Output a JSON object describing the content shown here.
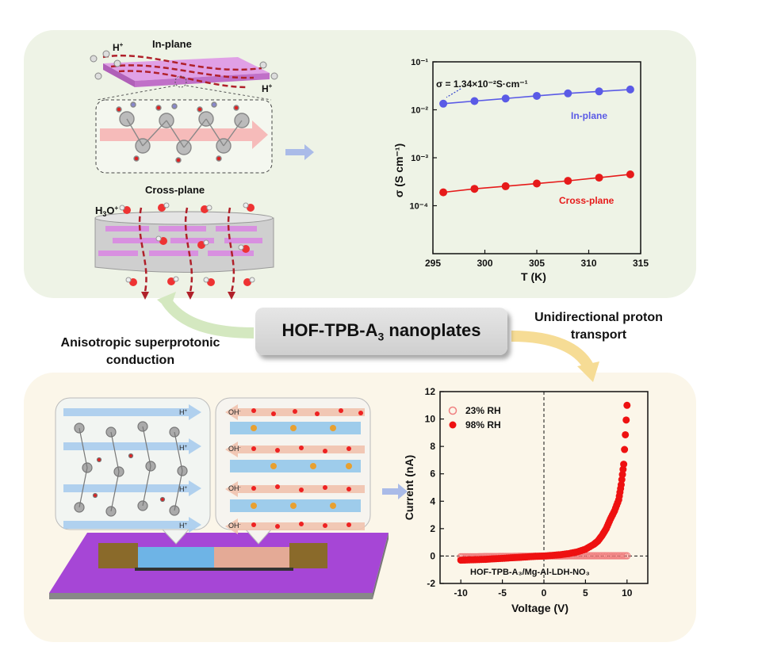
{
  "center_title": {
    "main": "HOF-TPB-A",
    "sub": "3",
    "tail": " nanoplates"
  },
  "left_caption": {
    "line1": "Anisotropic superprotonic",
    "line2": "conduction"
  },
  "right_caption": {
    "line1": "Unidirectional proton",
    "line2": "transport"
  },
  "schematic_top": {
    "inplane_label": "In-plane",
    "crossplane_label": "Cross-plane",
    "h_plus": "H",
    "h3o": "H",
    "h3o_sub": "3",
    "h3o_tail": "O"
  },
  "schematic_bottom": {
    "h_plus_labels": [
      "H",
      "H",
      "H",
      "H"
    ],
    "oh_labels": [
      "OH",
      "OH",
      "OH",
      "OH"
    ]
  },
  "chart_data": [
    {
      "type": "scatter",
      "title": "",
      "xlabel": "T (K)",
      "ylabel": "σ (S cm⁻¹)",
      "xlim": [
        295,
        315
      ],
      "ylim": [
        1e-05,
        0.1
      ],
      "yscale": "log",
      "x_ticks": [
        "295",
        "300",
        "305",
        "310",
        "315"
      ],
      "y_ticks": [
        "10⁻¹",
        "10⁻²",
        "10⁻³",
        "10⁻⁴"
      ],
      "annotation": "σ = 1.34×10⁻²S·cm⁻¹",
      "series": [
        {
          "name": "In-plane",
          "color": "#5a5ae6",
          "x": [
            296,
            299,
            302,
            305,
            308,
            311,
            314
          ],
          "y": [
            0.0134,
            0.0152,
            0.0172,
            0.0195,
            0.022,
            0.0242,
            0.0265
          ]
        },
        {
          "name": "Cross-plane",
          "color": "#e61a1a",
          "x": [
            296,
            299,
            302,
            305,
            308,
            311,
            314
          ],
          "y": [
            0.00019,
            0.000225,
            0.000255,
            0.00029,
            0.00033,
            0.000385,
            0.00045
          ]
        }
      ]
    },
    {
      "type": "scatter",
      "title": "",
      "xlabel": "Voltage (V)",
      "ylabel": "Current (nA)",
      "xlim": [
        -12.5,
        12.5
      ],
      "ylim": [
        -2,
        12
      ],
      "x_ticks": [
        "-10",
        "-5",
        "0",
        "5",
        "10"
      ],
      "y_ticks": [
        "-2",
        "0",
        "2",
        "4",
        "6",
        "8",
        "10",
        "12"
      ],
      "annotation": "HOF-TPB-A₃/Mg-Al-LDH-NO₃",
      "series": [
        {
          "name": "23% RH",
          "color": "#f08080",
          "marker": "open-circle",
          "x": [
            -10,
            -9,
            -8,
            -7,
            -6,
            -5,
            -4,
            -3,
            -2,
            -1,
            0,
            1,
            2,
            3,
            4,
            5,
            6,
            7,
            8,
            9,
            10
          ],
          "y": [
            -0.05,
            -0.05,
            -0.05,
            -0.04,
            -0.04,
            -0.03,
            -0.03,
            -0.02,
            -0.02,
            -0.01,
            0,
            0.01,
            0.01,
            0.02,
            0.02,
            0.02,
            0.02,
            0.02,
            0.02,
            0.02,
            0.02
          ]
        },
        {
          "name": "98% RH",
          "color": "#ee1111",
          "marker": "filled-circle",
          "x": [
            -10,
            -9,
            -8,
            -7,
            -6,
            -5,
            -4,
            -3,
            -2,
            -1,
            0,
            1,
            2,
            3,
            4,
            5,
            6,
            6.5,
            7,
            7.5,
            8,
            8.5,
            9,
            9.3,
            9.6,
            10
          ],
          "y": [
            -0.3,
            -0.28,
            -0.26,
            -0.24,
            -0.2,
            -0.17,
            -0.13,
            -0.1,
            -0.06,
            -0.02,
            0,
            0.05,
            0.1,
            0.18,
            0.3,
            0.5,
            0.85,
            1.1,
            1.5,
            2.0,
            2.7,
            3.3,
            4.1,
            5.2,
            6.7,
            11.0
          ]
        }
      ]
    }
  ]
}
